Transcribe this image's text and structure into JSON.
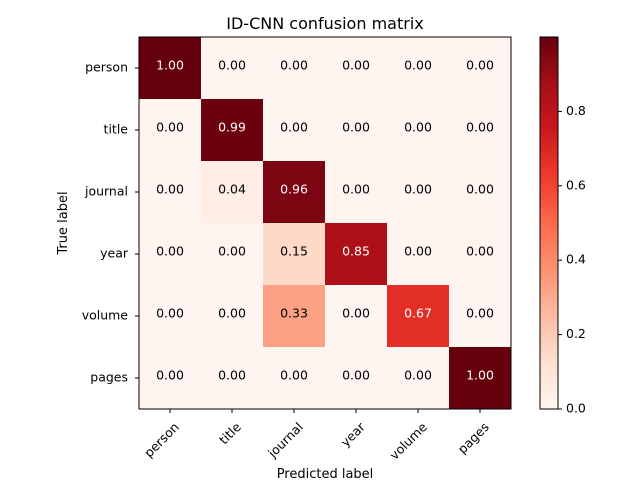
{
  "chart_data": {
    "type": "heatmap",
    "title": "ID-CNN confusion matrix",
    "xlabel": "Predicted label",
    "ylabel": "True label",
    "x_categories": [
      "person",
      "title",
      "journal",
      "year",
      "volume",
      "pages"
    ],
    "y_categories": [
      "person",
      "title",
      "journal",
      "year",
      "volume",
      "pages"
    ],
    "values": [
      [
        1.0,
        0.0,
        0.0,
        0.0,
        0.0,
        0.0
      ],
      [
        0.0,
        0.99,
        0.0,
        0.0,
        0.0,
        0.0
      ],
      [
        0.0,
        0.04,
        0.96,
        0.0,
        0.0,
        0.0
      ],
      [
        0.0,
        0.0,
        0.15,
        0.85,
        0.0,
        0.0
      ],
      [
        0.0,
        0.0,
        0.33,
        0.0,
        0.67,
        0.0
      ],
      [
        0.0,
        0.0,
        0.0,
        0.0,
        0.0,
        1.0
      ]
    ],
    "value_format": "0.00",
    "colormap": "Reds",
    "colorbar": {
      "range": [
        0.0,
        1.0
      ],
      "ticks": [
        0.0,
        0.2,
        0.4,
        0.6,
        0.8
      ],
      "tick_labels": [
        "0.0",
        "0.2",
        "0.4",
        "0.6",
        "0.8"
      ]
    },
    "x_tick_rotation_deg": 45,
    "grid": false
  }
}
